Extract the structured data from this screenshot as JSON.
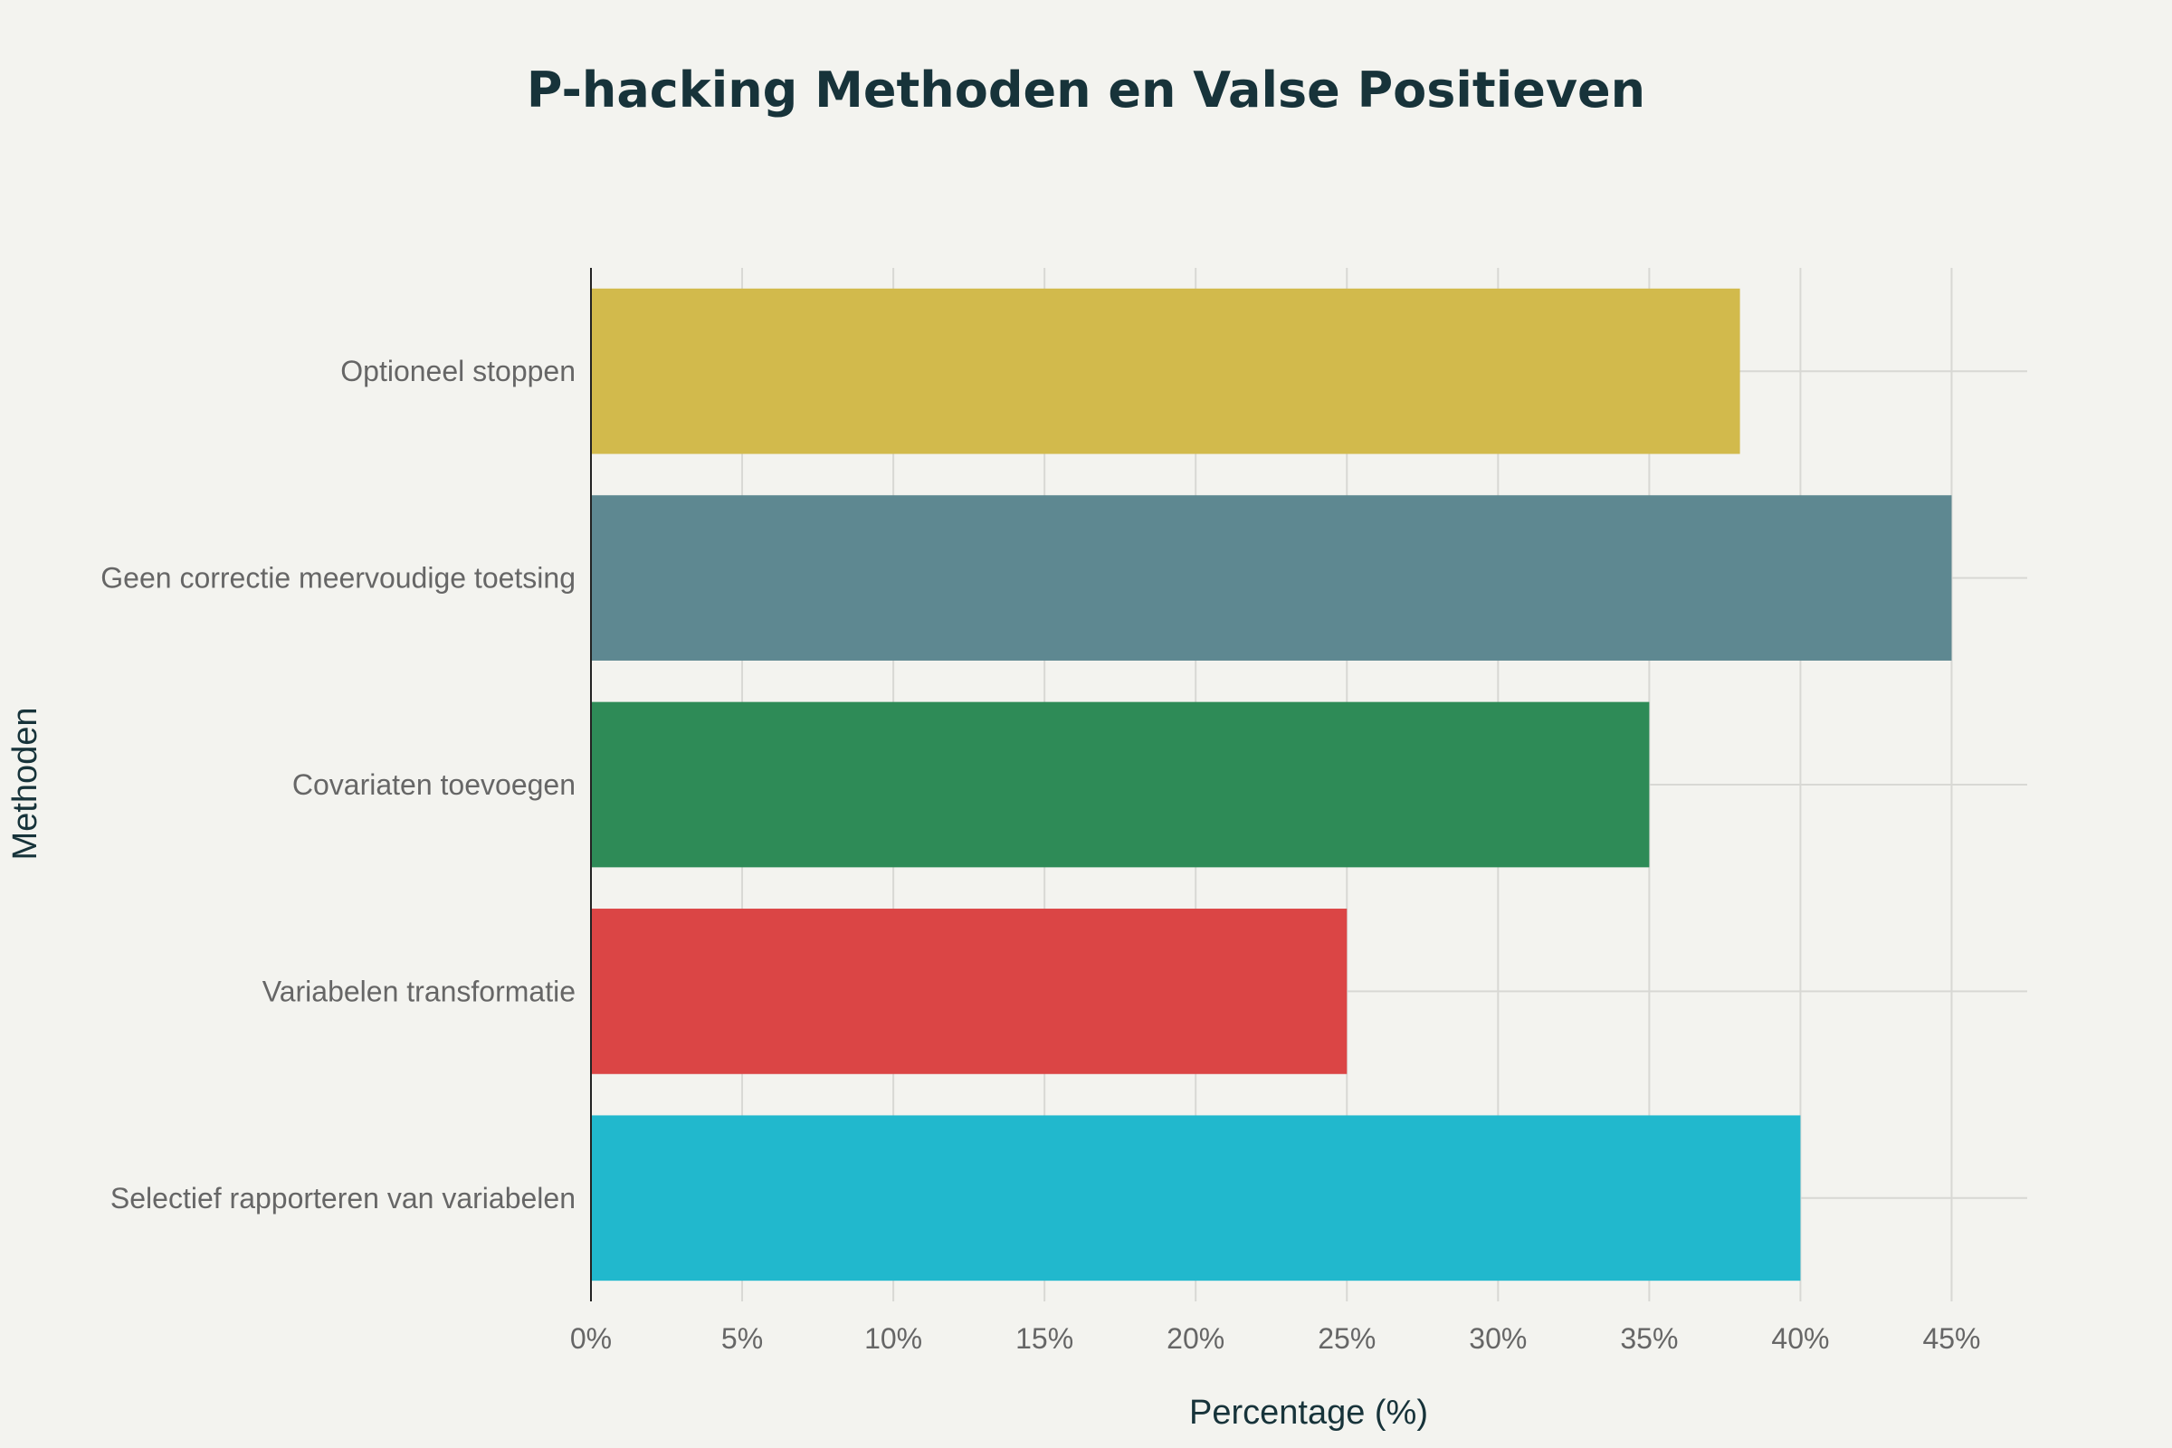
{
  "chart_data": {
    "type": "bar",
    "orientation": "horizontal",
    "title": "P-hacking Methoden en Valse Positieven",
    "xlabel": "Percentage (%)",
    "ylabel": "Methoden",
    "xlim": [
      0,
      47.5
    ],
    "x_ticks": [
      0,
      5,
      10,
      15,
      20,
      25,
      30,
      35,
      40,
      45
    ],
    "x_tick_labels": [
      "0%",
      "5%",
      "10%",
      "15%",
      "20%",
      "25%",
      "30%",
      "35%",
      "40%",
      "45%"
    ],
    "categories": [
      "Optioneel stoppen",
      "Geen correctie meervoudige toetsing",
      "Covariaten toevoegen",
      "Variabelen transformatie",
      "Selectief rapporteren van variabelen"
    ],
    "values": [
      38,
      45,
      35,
      25,
      40
    ],
    "colors": [
      "#d2ba4c",
      "#5e8891",
      "#2e8b57",
      "#db4545",
      "#21b8cd"
    ],
    "grid": true,
    "legend": "none"
  }
}
